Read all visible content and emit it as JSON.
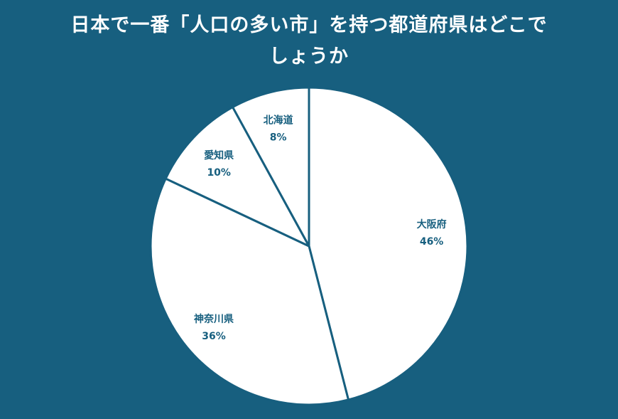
{
  "chart_data": {
    "type": "pie",
    "title_lines": [
      "日本で一番「人口の多い市」を持つ都道府県はどこで",
      "しょうか"
    ],
    "slices": [
      {
        "label": "大阪府",
        "value": 46,
        "value_label": "46%"
      },
      {
        "label": "神奈川県",
        "value": 36,
        "value_label": "36%"
      },
      {
        "label": "愛知県",
        "value": 10,
        "value_label": "10%"
      },
      {
        "label": "北海道",
        "value": 8,
        "value_label": "8%"
      }
    ],
    "start": "12 o'clock",
    "direction": "clockwise",
    "legend": "none"
  },
  "colors": {
    "background": "#175f7f",
    "slice_fill": "#ffffff",
    "slice_border": "#175f7f",
    "label_text": "#175f7f",
    "title_text": "#ffffff"
  }
}
